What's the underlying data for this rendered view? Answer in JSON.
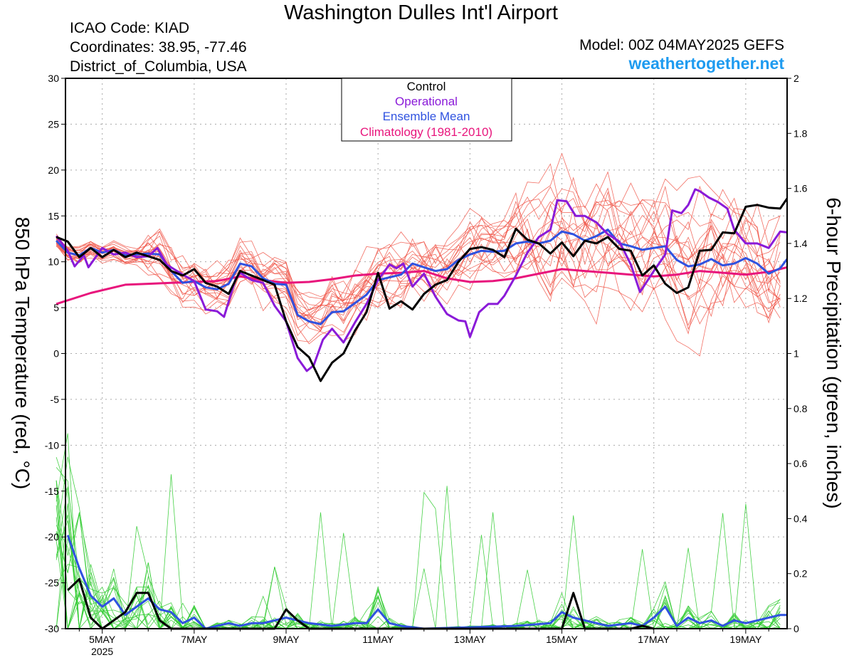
{
  "header": {
    "title": "Washington Dulles Int'l Airport",
    "icao": "ICAO Code: KIAD",
    "coords": "Coordinates: 38.95, -77.46",
    "region": "District_of_Columbia, USA",
    "model": "Model: 00Z 04MAY2025 GEFS",
    "site": "weathertogether.net"
  },
  "chart_data": {
    "type": "line",
    "title": "Washington Dulles Int'l Airport",
    "ylabel": "850 hPa Temperature (red, °C)",
    "y2label": "6-hour Precipitation (green, inches)",
    "xlim": [
      4.2,
      19.9
    ],
    "ylim": [
      -30,
      30
    ],
    "y2lim": [
      0,
      2
    ],
    "yticks": [
      "30",
      "25",
      "20",
      "15",
      "10",
      "5",
      "0",
      "-5",
      "-10",
      "-15",
      "-20",
      "-25",
      "-30"
    ],
    "y2ticks": [
      "2",
      "1.8",
      "1.6",
      "1.4",
      "1.2",
      "1",
      "0.8",
      "0.6",
      "0.4",
      "0.2",
      "0"
    ],
    "xticks": [
      {
        "x": 5.0,
        "label": "5MAY",
        "sub": "2025"
      },
      {
        "x": 7.0,
        "label": "7MAY",
        "sub": ""
      },
      {
        "x": 9.0,
        "label": "9MAY",
        "sub": ""
      },
      {
        "x": 11.0,
        "label": "11MAY",
        "sub": ""
      },
      {
        "x": 13.0,
        "label": "13MAY",
        "sub": ""
      },
      {
        "x": 15.0,
        "label": "15MAY",
        "sub": ""
      },
      {
        "x": 17.0,
        "label": "17MAY",
        "sub": ""
      },
      {
        "x": 19.0,
        "label": "19MAY",
        "sub": ""
      }
    ],
    "grid": true,
    "legend_placement": "top-center",
    "legend": [
      {
        "label": "Control",
        "color": "#000000"
      },
      {
        "label": "Operational",
        "color": "#8a1ad8"
      },
      {
        "label": "Ensemble Mean",
        "color": "#2f52e0"
      },
      {
        "label": "Climatology (1981-2010)",
        "color": "#e8157c"
      }
    ],
    "colors": {
      "member_temp": "#f05548",
      "member_precip": "#33cc33",
      "control": "#000000",
      "operational": "#8a1ad8",
      "mean": "#2f52e0",
      "climatology": "#e8157c"
    },
    "members_temp": {
      "count": 20,
      "spread_peak": 9,
      "note_visible": ""
    },
    "members_precip": {
      "count": 20
    },
    "temp_series": {
      "control": [
        [
          4.0,
          12.7
        ],
        [
          4.25,
          12.2
        ],
        [
          4.5,
          10.5
        ],
        [
          4.75,
          11.5
        ],
        [
          5.0,
          10.5
        ],
        [
          5.25,
          11.3
        ],
        [
          5.5,
          10.5
        ],
        [
          5.75,
          11.0
        ],
        [
          6.0,
          10.6
        ],
        [
          6.25,
          10.2
        ],
        [
          6.5,
          9.0
        ],
        [
          6.75,
          8.5
        ],
        [
          7.0,
          9.2
        ],
        [
          7.25,
          7.7
        ],
        [
          7.5,
          7.3
        ],
        [
          7.75,
          6.5
        ],
        [
          8.0,
          9.0
        ],
        [
          8.25,
          8.5
        ],
        [
          8.5,
          8.0
        ],
        [
          8.75,
          7.5
        ],
        [
          9.0,
          3.5
        ],
        [
          9.25,
          0.7
        ],
        [
          9.5,
          -0.4
        ],
        [
          9.75,
          -3.0
        ],
        [
          10.0,
          -1.0
        ],
        [
          10.25,
          0.0
        ],
        [
          10.5,
          2.5
        ],
        [
          10.75,
          4.5
        ],
        [
          11.0,
          8.8
        ],
        [
          11.25,
          4.9
        ],
        [
          11.5,
          5.7
        ],
        [
          11.75,
          4.8
        ],
        [
          12.0,
          6.5
        ],
        [
          12.25,
          7.5
        ],
        [
          12.5,
          8.0
        ],
        [
          12.75,
          10.0
        ],
        [
          13.0,
          11.4
        ],
        [
          13.25,
          11.6
        ],
        [
          13.5,
          11.3
        ],
        [
          13.75,
          10.5
        ],
        [
          14.0,
          13.6
        ],
        [
          14.25,
          12.4
        ],
        [
          14.5,
          12.0
        ],
        [
          14.75,
          10.9
        ],
        [
          15.0,
          12.1
        ],
        [
          15.25,
          10.6
        ],
        [
          15.5,
          12.3
        ],
        [
          15.75,
          12.0
        ],
        [
          16.0,
          12.7
        ],
        [
          16.25,
          11.4
        ],
        [
          16.5,
          11.2
        ],
        [
          16.75,
          8.5
        ],
        [
          17.0,
          9.6
        ],
        [
          17.25,
          7.6
        ],
        [
          17.5,
          6.6
        ],
        [
          17.75,
          7.2
        ],
        [
          18.0,
          11.2
        ],
        [
          18.25,
          11.3
        ],
        [
          18.5,
          13.2
        ],
        [
          18.75,
          13.1
        ],
        [
          19.0,
          16.0
        ],
        [
          19.25,
          16.2
        ],
        [
          19.5,
          15.9
        ],
        [
          19.75,
          15.8
        ],
        [
          19.9,
          16.9
        ]
      ],
      "operational": [
        [
          4.0,
          12.8
        ],
        [
          4.25,
          11.2
        ],
        [
          4.4,
          9.5
        ],
        [
          4.6,
          10.7
        ],
        [
          4.7,
          9.4
        ],
        [
          5.0,
          11.5
        ],
        [
          5.25,
          10.8
        ],
        [
          5.5,
          11.0
        ],
        [
          5.75,
          10.5
        ],
        [
          6.0,
          10.6
        ],
        [
          6.2,
          11.5
        ],
        [
          6.4,
          9.7
        ],
        [
          6.75,
          8.6
        ],
        [
          7.0,
          7.9
        ],
        [
          7.25,
          4.8
        ],
        [
          7.5,
          4.6
        ],
        [
          7.65,
          4.0
        ],
        [
          7.9,
          8.1
        ],
        [
          8.0,
          8.8
        ],
        [
          8.25,
          8.0
        ],
        [
          8.5,
          7.7
        ],
        [
          8.75,
          5.2
        ],
        [
          9.0,
          3.5
        ],
        [
          9.25,
          -0.5
        ],
        [
          9.45,
          -1.9
        ],
        [
          9.6,
          -1.3
        ],
        [
          9.8,
          1.5
        ],
        [
          10.0,
          2.7
        ],
        [
          10.25,
          1.2
        ],
        [
          10.5,
          3.4
        ],
        [
          10.75,
          5.4
        ],
        [
          11.0,
          8.0
        ],
        [
          11.25,
          9.7
        ],
        [
          11.4,
          9.3
        ],
        [
          11.55,
          9.8
        ],
        [
          11.75,
          7.3
        ],
        [
          12.0,
          8.7
        ],
        [
          12.25,
          6.2
        ],
        [
          12.5,
          4.3
        ],
        [
          12.75,
          3.6
        ],
        [
          12.9,
          3.5
        ],
        [
          13.0,
          1.8
        ],
        [
          13.2,
          4.5
        ],
        [
          13.4,
          5.4
        ],
        [
          13.6,
          5.4
        ],
        [
          13.75,
          6.3
        ],
        [
          14.0,
          8.5
        ],
        [
          14.25,
          11.0
        ],
        [
          14.5,
          12.7
        ],
        [
          14.75,
          13.5
        ],
        [
          14.9,
          16.7
        ],
        [
          15.1,
          16.6
        ],
        [
          15.3,
          15.0
        ],
        [
          15.5,
          15.0
        ],
        [
          15.75,
          14.3
        ],
        [
          16.0,
          13.0
        ],
        [
          16.25,
          12.2
        ],
        [
          16.5,
          9.7
        ],
        [
          16.7,
          6.7
        ],
        [
          17.0,
          9.0
        ],
        [
          17.25,
          10.8
        ],
        [
          17.4,
          15.6
        ],
        [
          17.6,
          15.3
        ],
        [
          17.75,
          16.2
        ],
        [
          17.9,
          17.9
        ],
        [
          18.0,
          17.7
        ],
        [
          18.2,
          17.0
        ],
        [
          18.4,
          16.5
        ],
        [
          18.6,
          15.8
        ],
        [
          18.75,
          13.5
        ],
        [
          19.0,
          12.0
        ],
        [
          19.25,
          12.0
        ],
        [
          19.5,
          11.5
        ],
        [
          19.75,
          13.3
        ],
        [
          19.9,
          13.2
        ]
      ],
      "mean": [
        [
          4.0,
          12.3
        ],
        [
          4.25,
          11.0
        ],
        [
          4.5,
          10.7
        ],
        [
          4.75,
          11.5
        ],
        [
          5.0,
          11.0
        ],
        [
          5.25,
          11.3
        ],
        [
          5.5,
          10.7
        ],
        [
          5.75,
          10.8
        ],
        [
          6.0,
          10.9
        ],
        [
          6.25,
          10.8
        ],
        [
          6.5,
          9.0
        ],
        [
          6.75,
          7.7
        ],
        [
          7.0,
          7.9
        ],
        [
          7.25,
          7.2
        ],
        [
          7.5,
          7.0
        ],
        [
          7.75,
          7.6
        ],
        [
          8.0,
          9.8
        ],
        [
          8.25,
          9.5
        ],
        [
          8.5,
          8.2
        ],
        [
          8.75,
          7.6
        ],
        [
          9.0,
          7.5
        ],
        [
          9.25,
          4.2
        ],
        [
          9.5,
          3.5
        ],
        [
          9.75,
          3.2
        ],
        [
          10.0,
          4.5
        ],
        [
          10.25,
          4.6
        ],
        [
          10.5,
          5.5
        ],
        [
          10.75,
          6.4
        ],
        [
          11.0,
          8.0
        ],
        [
          11.25,
          8.3
        ],
        [
          11.5,
          8.6
        ],
        [
          11.75,
          9.8
        ],
        [
          12.0,
          9.4
        ],
        [
          12.25,
          9.0
        ],
        [
          12.5,
          9.2
        ],
        [
          12.75,
          10.2
        ],
        [
          13.0,
          10.8
        ],
        [
          13.25,
          11.2
        ],
        [
          13.5,
          11.1
        ],
        [
          13.75,
          11.2
        ],
        [
          14.0,
          12.0
        ],
        [
          14.25,
          12.2
        ],
        [
          14.5,
          12.0
        ],
        [
          14.75,
          12.3
        ],
        [
          15.0,
          13.3
        ],
        [
          15.25,
          13.0
        ],
        [
          15.5,
          12.3
        ],
        [
          15.75,
          12.8
        ],
        [
          16.0,
          13.5
        ],
        [
          16.25,
          12.0
        ],
        [
          16.5,
          11.7
        ],
        [
          16.75,
          11.3
        ],
        [
          17.0,
          11.5
        ],
        [
          17.25,
          11.7
        ],
        [
          17.5,
          10.2
        ],
        [
          17.75,
          9.5
        ],
        [
          18.0,
          9.7
        ],
        [
          18.25,
          10.3
        ],
        [
          18.5,
          9.6
        ],
        [
          18.75,
          9.8
        ],
        [
          19.0,
          10.4
        ],
        [
          19.25,
          9.8
        ],
        [
          19.5,
          8.7
        ],
        [
          19.75,
          9.3
        ],
        [
          19.9,
          10.3
        ]
      ],
      "climatology": [
        [
          4.0,
          5.4
        ],
        [
          4.75,
          6.6
        ],
        [
          5.5,
          7.5
        ],
        [
          6.0,
          7.6
        ],
        [
          6.5,
          7.7
        ],
        [
          7.0,
          7.8
        ],
        [
          7.5,
          7.9
        ],
        [
          8.0,
          8.4
        ],
        [
          8.5,
          8.0
        ],
        [
          9.0,
          7.7
        ],
        [
          9.5,
          7.8
        ],
        [
          10.0,
          8.1
        ],
        [
          10.5,
          8.5
        ],
        [
          11.0,
          8.7
        ],
        [
          11.5,
          8.8
        ],
        [
          12.0,
          9.0
        ],
        [
          12.5,
          8.2
        ],
        [
          13.0,
          7.8
        ],
        [
          13.5,
          7.9
        ],
        [
          14.0,
          8.2
        ],
        [
          14.5,
          8.7
        ],
        [
          15.0,
          9.2
        ],
        [
          15.5,
          9.0
        ],
        [
          16.0,
          8.8
        ],
        [
          16.5,
          8.6
        ],
        [
          17.0,
          8.4
        ],
        [
          17.5,
          8.6
        ],
        [
          18.0,
          9.0
        ],
        [
          18.5,
          8.8
        ],
        [
          19.0,
          8.6
        ],
        [
          19.5,
          8.9
        ],
        [
          19.9,
          9.4
        ]
      ]
    },
    "precip_series": {
      "control": [
        [
          4.25,
          0.14
        ],
        [
          4.5,
          0.18
        ],
        [
          4.75,
          0.04
        ],
        [
          5.0,
          0.0
        ],
        [
          5.25,
          0.03
        ],
        [
          5.5,
          0.06
        ],
        [
          5.75,
          0.13
        ],
        [
          6.0,
          0.13
        ],
        [
          6.25,
          0.03
        ],
        [
          6.5,
          0.0
        ],
        [
          8.75,
          0.0
        ],
        [
          9.0,
          0.07
        ],
        [
          9.25,
          0.03
        ],
        [
          9.5,
          0.0
        ],
        [
          14.5,
          0.0
        ],
        [
          15.0,
          0.0
        ],
        [
          15.25,
          0.13
        ],
        [
          15.5,
          0.0
        ],
        [
          16.5,
          0.0
        ],
        [
          16.75,
          0.01
        ],
        [
          17.0,
          0.0
        ]
      ],
      "mean": [
        [
          4.25,
          0.34
        ],
        [
          4.5,
          0.22
        ],
        [
          4.75,
          0.12
        ],
        [
          5.0,
          0.08
        ],
        [
          5.25,
          0.11
        ],
        [
          5.5,
          0.05
        ],
        [
          5.75,
          0.08
        ],
        [
          6.0,
          0.11
        ],
        [
          6.25,
          0.07
        ],
        [
          6.5,
          0.06
        ],
        [
          6.75,
          0.02
        ],
        [
          7.0,
          0.04
        ],
        [
          7.25,
          0.0
        ],
        [
          7.5,
          0.01
        ],
        [
          7.75,
          0.02
        ],
        [
          8.0,
          0.01
        ],
        [
          8.25,
          0.02
        ],
        [
          8.5,
          0.02
        ],
        [
          8.75,
          0.03
        ],
        [
          9.0,
          0.04
        ],
        [
          9.25,
          0.03
        ],
        [
          9.5,
          0.02
        ],
        [
          10.0,
          0.01
        ],
        [
          10.5,
          0.02
        ],
        [
          10.75,
          0.02
        ],
        [
          11.0,
          0.07
        ],
        [
          11.25,
          0.02
        ],
        [
          11.5,
          0.01
        ],
        [
          12.0,
          0.0
        ],
        [
          14.0,
          0.01
        ],
        [
          14.75,
          0.02
        ],
        [
          15.0,
          0.06
        ],
        [
          15.25,
          0.04
        ],
        [
          15.5,
          0.03
        ],
        [
          16.0,
          0.01
        ],
        [
          16.5,
          0.02
        ],
        [
          16.75,
          0.01
        ],
        [
          17.0,
          0.04
        ],
        [
          17.25,
          0.08
        ],
        [
          17.5,
          0.01
        ],
        [
          17.75,
          0.04
        ],
        [
          18.0,
          0.02
        ],
        [
          18.25,
          0.03
        ],
        [
          18.5,
          0.01
        ],
        [
          18.75,
          0.03
        ],
        [
          19.0,
          0.02
        ],
        [
          19.25,
          0.03
        ],
        [
          19.75,
          0.05
        ],
        [
          19.9,
          0.05
        ]
      ]
    }
  }
}
